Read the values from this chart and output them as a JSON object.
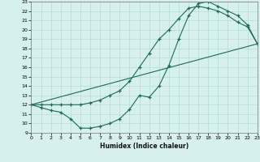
{
  "xlabel": "Humidex (Indice chaleur)",
  "bg_color": "#d6f0ee",
  "grid_color": "#b8dbd8",
  "line_color": "#1a6b5a",
  "xlim": [
    0,
    23
  ],
  "ylim": [
    9,
    23
  ],
  "xticks": [
    0,
    1,
    2,
    3,
    4,
    5,
    6,
    7,
    8,
    9,
    10,
    11,
    12,
    13,
    14,
    15,
    16,
    17,
    18,
    19,
    20,
    21,
    22,
    23
  ],
  "yticks": [
    9,
    10,
    11,
    12,
    13,
    14,
    15,
    16,
    17,
    18,
    19,
    20,
    21,
    22,
    23
  ],
  "line1_x": [
    0,
    1,
    2,
    3,
    4,
    5,
    6,
    7,
    8,
    9,
    10,
    11,
    12,
    13,
    14,
    15,
    16,
    17,
    18,
    19,
    20,
    21,
    22,
    23
  ],
  "line1_y": [
    12,
    11.7,
    11.4,
    11.2,
    10.5,
    9.5,
    9.5,
    9.7,
    10.0,
    10.5,
    11.5,
    13.0,
    12.8,
    14.0,
    16.2,
    19.0,
    21.5,
    22.8,
    23.0,
    22.5,
    22.0,
    21.5,
    20.5,
    18.5
  ],
  "line2_x": [
    0,
    1,
    2,
    3,
    4,
    5,
    6,
    7,
    8,
    9,
    10,
    11,
    12,
    13,
    14,
    15,
    16,
    17,
    18,
    19,
    20,
    21,
    22,
    23
  ],
  "line2_y": [
    12,
    12.0,
    12.0,
    12.0,
    12.0,
    12.0,
    12.2,
    12.5,
    13.0,
    13.5,
    14.5,
    16.0,
    17.5,
    19.0,
    20.0,
    21.2,
    22.3,
    22.5,
    22.3,
    22.0,
    21.5,
    20.8,
    20.3,
    18.5
  ],
  "line3_x": [
    0,
    23
  ],
  "line3_y": [
    12,
    18.5
  ]
}
